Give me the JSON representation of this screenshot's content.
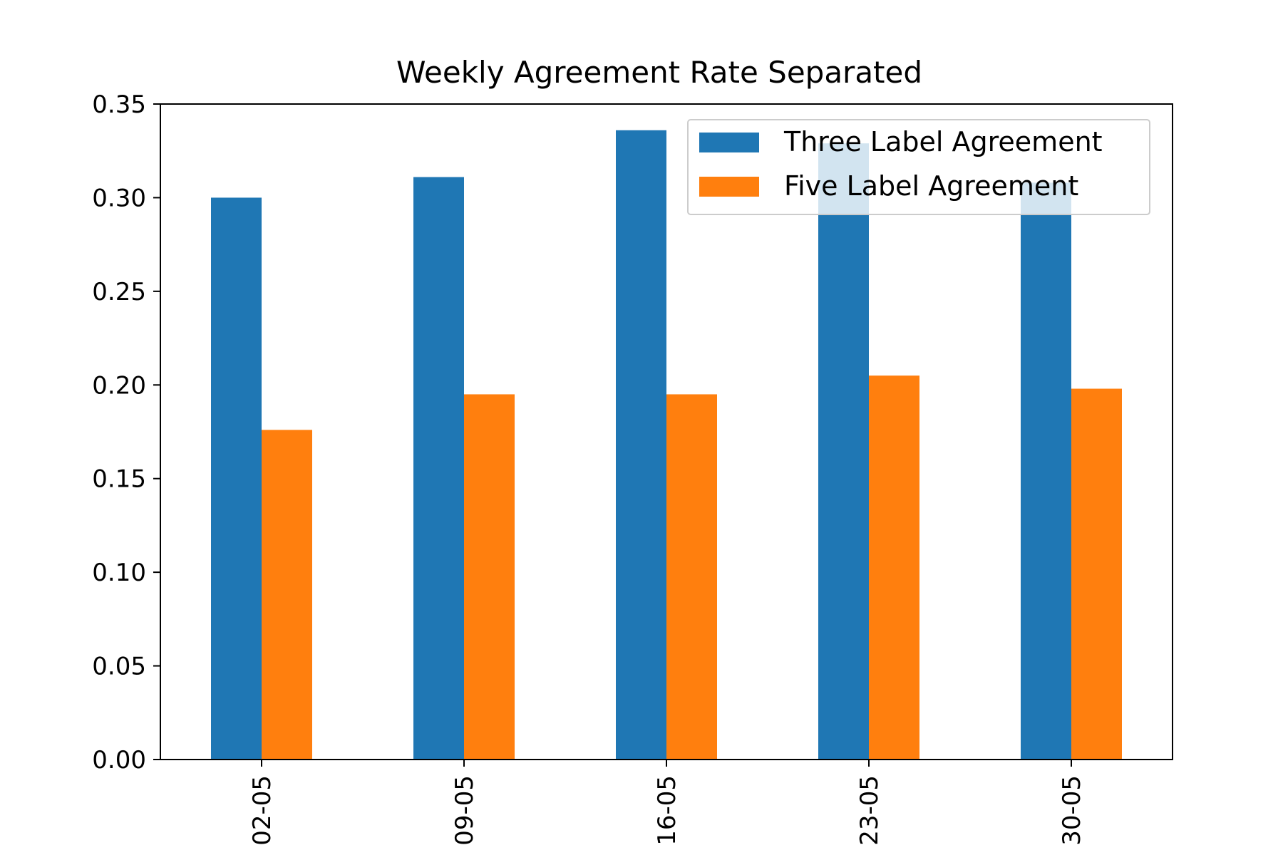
{
  "chart_data": {
    "type": "bar",
    "title": "Weekly Agreement Rate Separated",
    "xlabel": "",
    "ylabel": "",
    "categories": [
      "02-05",
      "09-05",
      "16-05",
      "23-05",
      "30-05"
    ],
    "series": [
      {
        "name": "Three Label Agreement",
        "color": "#1f77b4",
        "values": [
          0.3,
          0.311,
          0.336,
          0.329,
          0.308
        ]
      },
      {
        "name": "Five Label Agreement",
        "color": "#ff7f0e",
        "values": [
          0.176,
          0.195,
          0.195,
          0.205,
          0.198
        ]
      }
    ],
    "ylim": [
      0,
      0.35
    ],
    "yticks": [
      "0.00",
      "0.05",
      "0.10",
      "0.15",
      "0.20",
      "0.25",
      "0.30",
      "0.35"
    ],
    "grid": false,
    "legend_position": "top-right"
  }
}
